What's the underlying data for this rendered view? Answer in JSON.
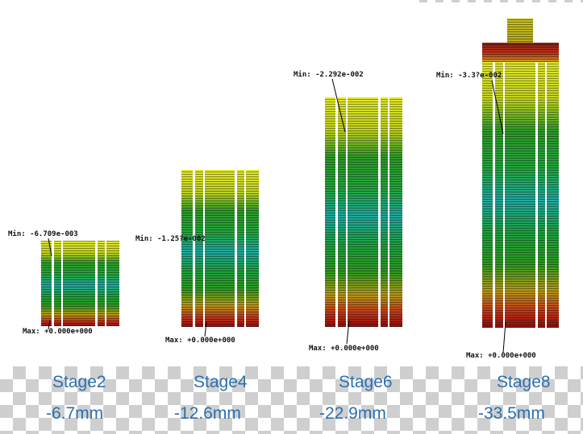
{
  "stages": [
    {
      "name": "Stage2",
      "disp": "-6.7mm",
      "min_label": "Min: -6.709e-003",
      "max_label": "Max: +0.000e+000"
    },
    {
      "name": "Stage4",
      "disp": "-12.6mm",
      "min_label": "Min: -1.25?e-002",
      "max_label": "Max: +0.000e+000"
    },
    {
      "name": "Stage6",
      "disp": "-22.9mm",
      "min_label": "Min: -2.292e-002",
      "max_label": "Max: +0.000e+000"
    },
    {
      "name": "Stage8",
      "disp": "-33.5mm",
      "min_label": "Min: -3.3?e-002",
      "max_label": "Max: +0.000e+000"
    }
  ],
  "colors": {
    "label_blue": "#2a6fb0"
  }
}
